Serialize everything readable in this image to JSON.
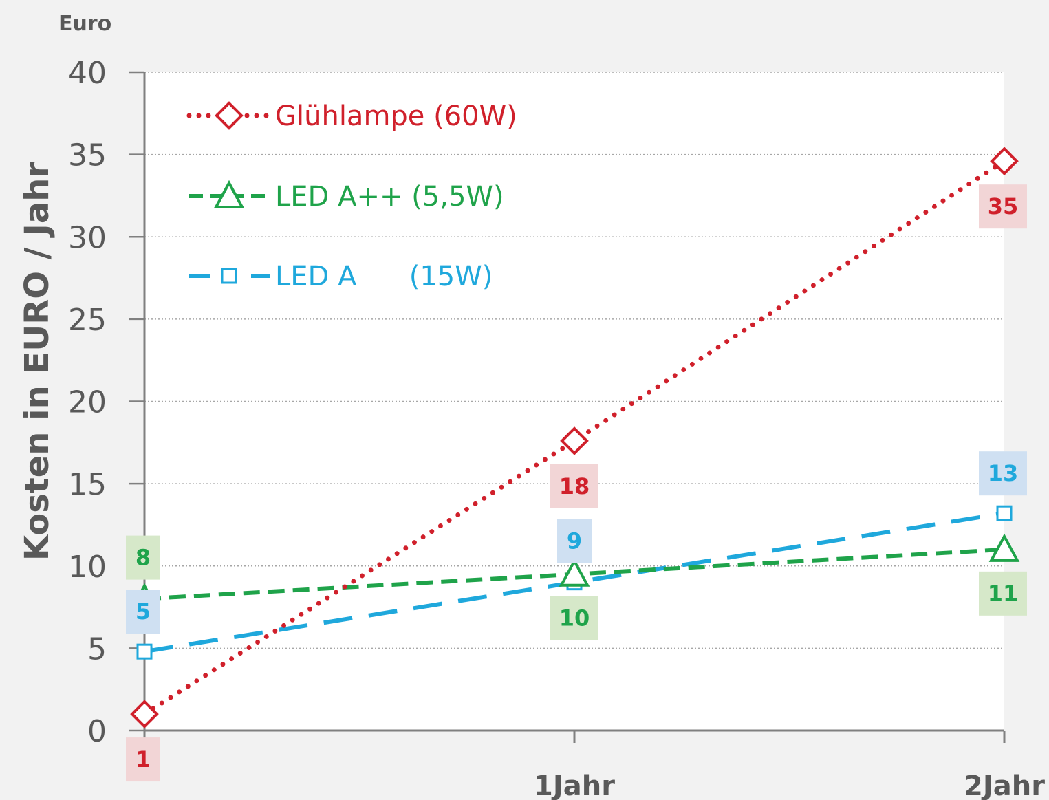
{
  "chart_data": {
    "type": "line",
    "unit_label": "Euro",
    "ylabel": "Kosten in EURO / Jahr",
    "xlabel": "",
    "categories": [
      "",
      "1Jahr",
      "2Jahr"
    ],
    "y_ticks": [
      "0",
      "5",
      "10",
      "15",
      "20",
      "25",
      "30",
      "35",
      "40"
    ],
    "ylim": [
      0,
      40
    ],
    "grid": true,
    "legend_position": "top-left",
    "series": [
      {
        "name": "Glühlampe (60W)",
        "color": "#d0202b",
        "label_bg": "#f2d5d6",
        "line_style": "dotted",
        "marker": "diamond",
        "values": [
          1,
          17.6,
          34.6
        ],
        "data_labels": [
          "1",
          "18",
          "35"
        ]
      },
      {
        "name": "LED A++ (5,5W)",
        "color": "#1fa34a",
        "label_bg": "#d6e8c9",
        "line_style": "dashed",
        "marker": "triangle",
        "values": [
          8,
          9.5,
          11
        ],
        "data_labels": [
          "8",
          "10",
          "11"
        ]
      },
      {
        "name": "LED A      (15W)",
        "color": "#1fa8dc",
        "label_bg": "#cfe0f2",
        "line_style": "long-dash",
        "marker": "square",
        "values": [
          4.8,
          9,
          13.2
        ],
        "data_labels": [
          "5",
          "9",
          "13"
        ]
      }
    ]
  }
}
